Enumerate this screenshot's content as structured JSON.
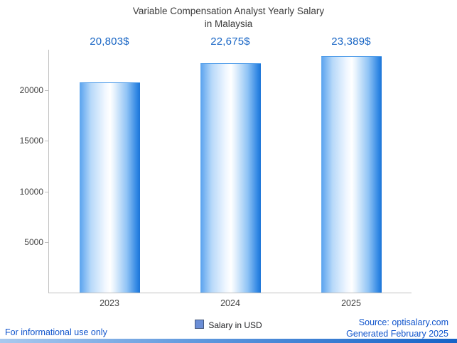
{
  "title": {
    "line1": "Variable Compensation Analyst Yearly Salary",
    "line2": "in Malaysia"
  },
  "chart_data": {
    "type": "bar",
    "title": "Variable Compensation Analyst Yearly Salary in Malaysia",
    "categories": [
      "2023",
      "2024",
      "2025"
    ],
    "values": [
      20803,
      22675,
      23389
    ],
    "value_labels": [
      "20,803$",
      "22,675$",
      "23,389$"
    ],
    "xlabel": "",
    "ylabel": "",
    "ylim": [
      0,
      24000
    ],
    "yticks": [
      5000,
      10000,
      15000,
      20000
    ],
    "grid": false,
    "legend_position": "bottom",
    "series_name": "Salary in USD",
    "bar_gradient": [
      "#5ea5ef",
      "#ffffff",
      "#1b74d6"
    ]
  },
  "legend": {
    "label": "Salary in USD",
    "swatch_color": "#6b8ed6"
  },
  "footer": {
    "left": "For informational use only",
    "source": "Source: optisalary.com",
    "generated": "Generated February 2025"
  },
  "colors": {
    "value_label": "#1664c4",
    "footer_text": "#1155cc",
    "axis": "#c0c0c0",
    "text": "#3a3a3a"
  }
}
